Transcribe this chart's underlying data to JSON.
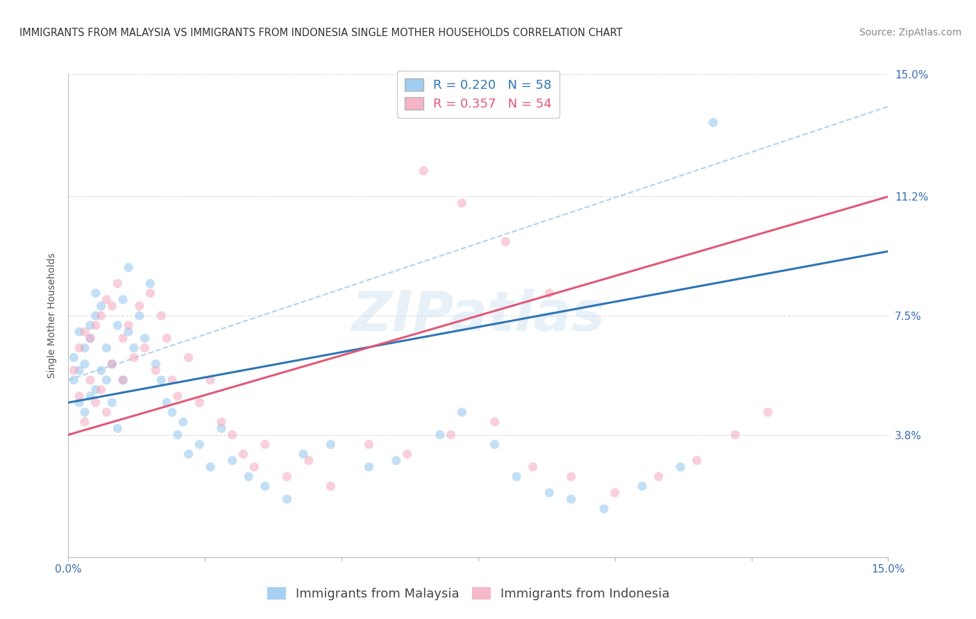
{
  "title": "IMMIGRANTS FROM MALAYSIA VS IMMIGRANTS FROM INDONESIA SINGLE MOTHER HOUSEHOLDS CORRELATION CHART",
  "source": "Source: ZipAtlas.com",
  "ylabel": "Single Mother Households",
  "xlim": [
    0.0,
    0.15
  ],
  "ylim": [
    0.0,
    0.15
  ],
  "ytick_values": [
    0.0,
    0.038,
    0.075,
    0.112,
    0.15
  ],
  "ytick_labels": [
    "",
    "3.8%",
    "7.5%",
    "11.2%",
    "15.0%"
  ],
  "xtick_values": [
    0.0,
    0.025,
    0.05,
    0.075,
    0.1,
    0.125,
    0.15
  ],
  "xtick_labels": [
    "0.0%",
    "",
    "",
    "",
    "",
    "",
    "15.0%"
  ],
  "malaysia_color": "#92C5F0",
  "indonesia_color": "#F4A8BC",
  "malaysia_line_color": "#2E75B6",
  "indonesia_line_color": "#E05878",
  "malaysia_dashed_color": "#AACCE8",
  "background_color": "#FFFFFF",
  "grid_color": "#DDDDDD",
  "legend_R_malaysia": "R = 0.220",
  "legend_N_malaysia": "N = 58",
  "legend_R_indonesia": "R = 0.357",
  "legend_N_indonesia": "N = 54",
  "legend_label_malaysia": "Immigrants from Malaysia",
  "legend_label_indonesia": "Immigrants from Indonesia",
  "watermark": "ZIPatlas",
  "malaysia_x": [
    0.001,
    0.001,
    0.002,
    0.002,
    0.002,
    0.003,
    0.003,
    0.003,
    0.004,
    0.004,
    0.004,
    0.005,
    0.005,
    0.005,
    0.006,
    0.006,
    0.007,
    0.007,
    0.008,
    0.008,
    0.009,
    0.009,
    0.01,
    0.01,
    0.011,
    0.011,
    0.012,
    0.013,
    0.014,
    0.015,
    0.016,
    0.017,
    0.018,
    0.019,
    0.02,
    0.021,
    0.022,
    0.024,
    0.026,
    0.028,
    0.03,
    0.033,
    0.036,
    0.04,
    0.043,
    0.048,
    0.055,
    0.06,
    0.068,
    0.072,
    0.078,
    0.082,
    0.088,
    0.092,
    0.098,
    0.105,
    0.112,
    0.118
  ],
  "malaysia_y": [
    0.055,
    0.062,
    0.058,
    0.07,
    0.048,
    0.065,
    0.06,
    0.045,
    0.072,
    0.05,
    0.068,
    0.075,
    0.052,
    0.082,
    0.058,
    0.078,
    0.065,
    0.055,
    0.06,
    0.048,
    0.072,
    0.04,
    0.08,
    0.055,
    0.07,
    0.09,
    0.065,
    0.075,
    0.068,
    0.085,
    0.06,
    0.055,
    0.048,
    0.045,
    0.038,
    0.042,
    0.032,
    0.035,
    0.028,
    0.04,
    0.03,
    0.025,
    0.022,
    0.018,
    0.032,
    0.035,
    0.028,
    0.03,
    0.038,
    0.045,
    0.035,
    0.025,
    0.02,
    0.018,
    0.015,
    0.022,
    0.028,
    0.135
  ],
  "indonesia_x": [
    0.001,
    0.002,
    0.002,
    0.003,
    0.003,
    0.004,
    0.004,
    0.005,
    0.005,
    0.006,
    0.006,
    0.007,
    0.007,
    0.008,
    0.008,
    0.009,
    0.01,
    0.01,
    0.011,
    0.012,
    0.013,
    0.014,
    0.015,
    0.016,
    0.017,
    0.018,
    0.019,
    0.02,
    0.022,
    0.024,
    0.026,
    0.028,
    0.03,
    0.032,
    0.034,
    0.036,
    0.04,
    0.044,
    0.048,
    0.055,
    0.062,
    0.07,
    0.078,
    0.085,
    0.092,
    0.1,
    0.108,
    0.115,
    0.122,
    0.128,
    0.065,
    0.072,
    0.08,
    0.088
  ],
  "indonesia_y": [
    0.058,
    0.065,
    0.05,
    0.07,
    0.042,
    0.068,
    0.055,
    0.072,
    0.048,
    0.075,
    0.052,
    0.08,
    0.045,
    0.078,
    0.06,
    0.085,
    0.068,
    0.055,
    0.072,
    0.062,
    0.078,
    0.065,
    0.082,
    0.058,
    0.075,
    0.068,
    0.055,
    0.05,
    0.062,
    0.048,
    0.055,
    0.042,
    0.038,
    0.032,
    0.028,
    0.035,
    0.025,
    0.03,
    0.022,
    0.035,
    0.032,
    0.038,
    0.042,
    0.028,
    0.025,
    0.02,
    0.025,
    0.03,
    0.038,
    0.045,
    0.12,
    0.11,
    0.098,
    0.082
  ],
  "title_fontsize": 10.5,
  "axis_label_fontsize": 10,
  "tick_fontsize": 11,
  "legend_fontsize": 13,
  "source_fontsize": 10,
  "marker_size": 90,
  "marker_alpha": 0.55,
  "line_width": 2.2
}
